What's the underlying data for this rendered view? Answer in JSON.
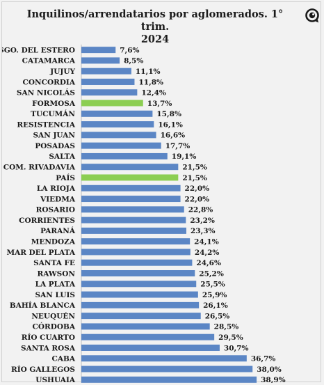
{
  "chart_data": {
    "type": "bar",
    "orientation": "horizontal",
    "title_line1": "Inquilinos/arrendatarios por aglomerados. 1° trim.",
    "title_line2": "2024",
    "xlabel": "",
    "ylabel": "",
    "xlim": [
      0,
      40
    ],
    "grid": false,
    "legend": "none",
    "colors": {
      "default": "#5b86c5",
      "highlight": "#8cce52"
    },
    "categories": [
      "SGO. DEL ESTERO",
      "CATAMARCA",
      "JUJUY",
      "CONCORDIA",
      "SAN NICOLÁS",
      "FORMOSA",
      "TUCUMÁN",
      "RESISTENCIA",
      "SAN JUAN",
      "POSADAS",
      "SALTA",
      "COM. RIVADAVIA",
      "PAÍS",
      "LA RIOJA",
      "VIEDMA",
      "ROSARIO",
      "CORRIENTES",
      "PARANÁ",
      "MENDOZA",
      "MAR DEL PLATA",
      "SANTA FE",
      "RAWSON",
      "LA PLATA",
      "SAN LUIS",
      "BAHÍA BLANCA",
      "NEUQUÉN",
      "CÓRDOBA",
      "RÍO CUARTO",
      "SANTA ROSA",
      "CABA",
      "RÍO GALLEGOS",
      "USHUAIA"
    ],
    "values": [
      7.6,
      8.5,
      11.1,
      11.8,
      12.4,
      13.7,
      15.8,
      16.1,
      16.6,
      17.7,
      19.1,
      21.5,
      21.5,
      22.0,
      22.0,
      22.8,
      23.2,
      23.3,
      24.1,
      24.2,
      24.6,
      25.2,
      25.5,
      25.9,
      26.1,
      26.5,
      28.5,
      29.5,
      30.7,
      36.7,
      38.0,
      38.9
    ],
    "value_labels": [
      "7,6%",
      "8,5%",
      "11,1%",
      "11,8%",
      "12,4%",
      "13,7%",
      "15,8%",
      "16,1%",
      "16,6%",
      "17,7%",
      "19,1%",
      "21,5%",
      "21,5%",
      "22,0%",
      "22,0%",
      "22,8%",
      "23,2%",
      "23,3%",
      "24,1%",
      "24,2%",
      "24,6%",
      "25,2%",
      "25,5%",
      "25,9%",
      "26,1%",
      "26,5%",
      "28,5%",
      "29,5%",
      "30,7%",
      "36,7%",
      "38,0%",
      "38,9%"
    ],
    "highlighted": [
      "FORMOSA",
      "PAÍS"
    ]
  },
  "logo": {
    "icon": "magnifier-logo-icon",
    "color": "#1a1a1a"
  }
}
